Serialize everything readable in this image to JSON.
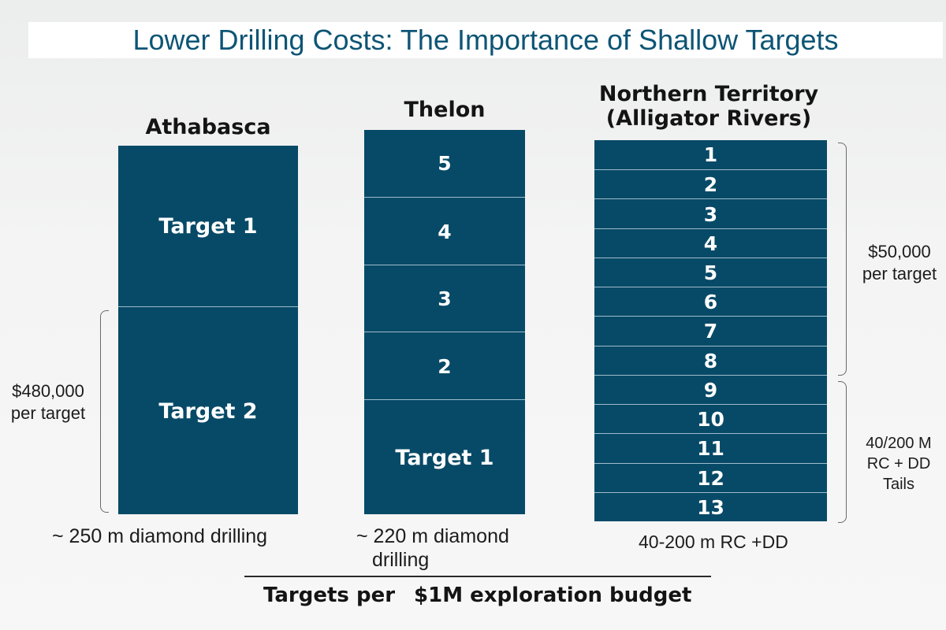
{
  "title": "Lower Drilling Costs: The Importance of Shallow Targets",
  "columns": [
    {
      "name": "Athabasca",
      "segments": [
        "Target 1",
        "Target 2"
      ],
      "drilling_note": "~ 250 m diamond drilling",
      "cost_note": [
        "$480,000",
        "per target"
      ]
    },
    {
      "name": "Thelon",
      "segments": [
        "5",
        "4",
        "3",
        "2",
        "Target 1"
      ],
      "drilling_note": [
        "~ 220 m diamond",
        "drilling"
      ]
    },
    {
      "name": [
        "Northern Territory",
        "(Alligator Rivers)"
      ],
      "segments": [
        "1",
        "2",
        "3",
        "4",
        "5",
        "6",
        "7",
        "8",
        "9",
        "10",
        "11",
        "12",
        "13"
      ],
      "drilling_note": "40-200 m RC +DD",
      "cost_note": [
        "$50,000",
        "per target"
      ],
      "method_note": [
        "40/200 M",
        "RC + DD",
        "Tails"
      ]
    }
  ],
  "footer": [
    "Targets per",
    "$1M exploration budget"
  ],
  "colors": {
    "title": "#0d5575",
    "bar": "#074a67",
    "bar_divider": "#9fbccc",
    "text": "#1c1c1c"
  }
}
